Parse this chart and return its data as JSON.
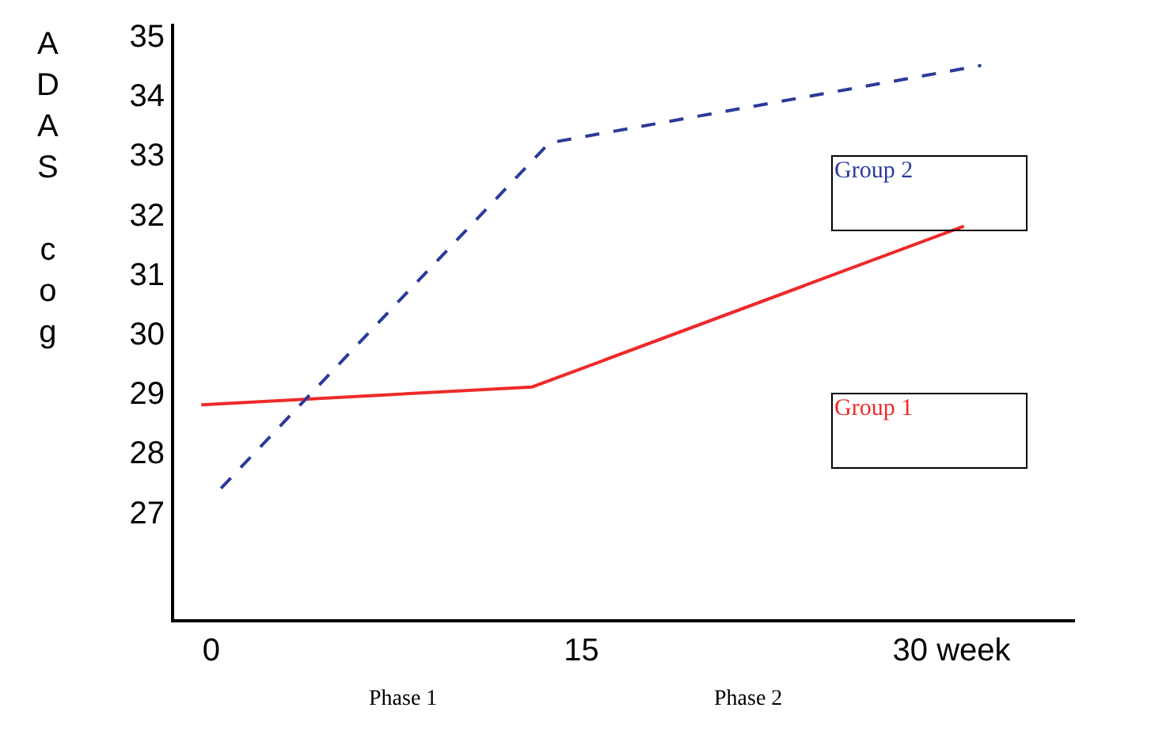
{
  "chart_data": {
    "type": "line",
    "ylabel": "ADAS cog",
    "xlim": [
      -1.5,
      35
    ],
    "xticks": [
      0,
      15,
      {
        "value": 30,
        "label": "30 week"
      }
    ],
    "ylim": [
      25.2,
      35.2
    ],
    "yticks": [
      27,
      28,
      29,
      30,
      31,
      32,
      33,
      34,
      35
    ],
    "legend": false,
    "marker": "none",
    "series": [
      {
        "name": "Group 1",
        "color": "#ee2a2a",
        "line_style": "solid",
        "x": [
          -0.4,
          13,
          30.5
        ],
        "values": [
          28.8,
          29.1,
          31.8
        ]
      },
      {
        "name": "Group 2",
        "color": "#2b3a9b",
        "line_style": "dashed",
        "x": [
          0.4,
          13.7,
          31.2
        ],
        "values": [
          27.4,
          33.2,
          34.5
        ]
      }
    ],
    "annotations": [
      "Phase 1",
      "Phase 2"
    ]
  }
}
